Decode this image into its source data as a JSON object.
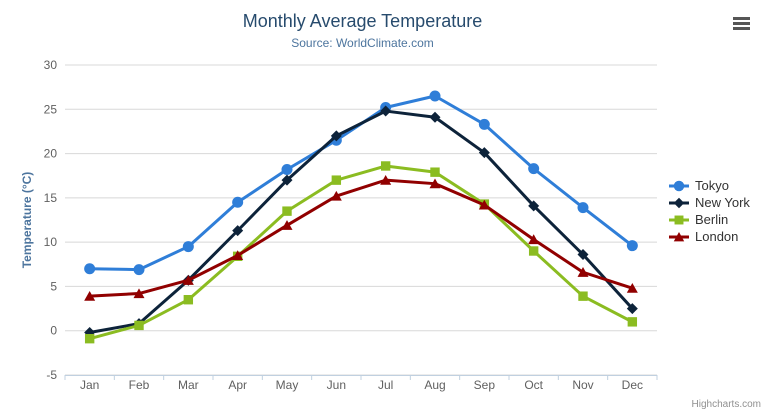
{
  "header": {
    "title": "Monthly Average Temperature",
    "subtitle": "Source: WorldClimate.com"
  },
  "footer": {
    "credit": "Highcharts.com"
  },
  "icons": {
    "export_menu": "hamburger-icon"
  },
  "colors": {
    "background": "#ffffff",
    "title": "#274b6d",
    "subtitle": "#4d759e",
    "axis_title": "#4d759e",
    "tick_label": "#606060",
    "grid": "#d8d8d8",
    "axis_line": "#c0d0e0",
    "legend_text": "#333333",
    "credit": "#909090",
    "menu_icon": "#565656"
  },
  "chart_data": {
    "type": "line",
    "title": "Monthly Average Temperature",
    "subtitle": "Source: WorldClimate.com",
    "xlabel": "",
    "ylabel": "Temperature (°C)",
    "ylim": [
      -5,
      30
    ],
    "ytick_step": 5,
    "yticks": [
      30,
      25,
      20,
      15,
      10,
      5,
      0,
      -5
    ],
    "grid": true,
    "legend_position": "right",
    "categories": [
      "Jan",
      "Feb",
      "Mar",
      "Apr",
      "May",
      "Jun",
      "Jul",
      "Aug",
      "Sep",
      "Oct",
      "Nov",
      "Dec"
    ],
    "series": [
      {
        "name": "Tokyo",
        "color": "#2f7ed8",
        "marker": "circle",
        "values": [
          7.0,
          6.9,
          9.5,
          14.5,
          18.2,
          21.5,
          25.2,
          26.5,
          23.3,
          18.3,
          13.9,
          9.6
        ]
      },
      {
        "name": "New York",
        "color": "#0d233a",
        "marker": "diamond",
        "values": [
          -0.2,
          0.8,
          5.7,
          11.3,
          17.0,
          22.0,
          24.8,
          24.1,
          20.1,
          14.1,
          8.6,
          2.5
        ]
      },
      {
        "name": "Berlin",
        "color": "#8bbc21",
        "marker": "square",
        "values": [
          -0.9,
          0.6,
          3.5,
          8.4,
          13.5,
          17.0,
          18.6,
          17.9,
          14.3,
          9.0,
          3.9,
          1.0
        ]
      },
      {
        "name": "London",
        "color": "#910000",
        "marker": "triangle",
        "values": [
          3.9,
          4.2,
          5.7,
          8.5,
          11.9,
          15.2,
          17.0,
          16.6,
          14.2,
          10.3,
          6.6,
          4.8
        ]
      }
    ]
  }
}
